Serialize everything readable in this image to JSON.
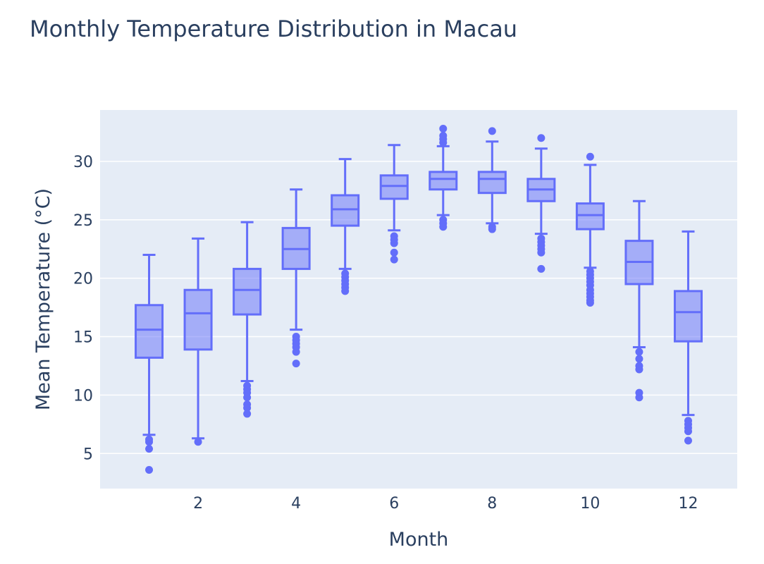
{
  "chart_data": {
    "type": "box",
    "title": "Monthly Temperature Distribution in Macau",
    "xlabel": "Month",
    "ylabel": "Mean Temperature (°C)",
    "xlim": [
      0,
      13
    ],
    "ylim": [
      2,
      34.4
    ],
    "x_ticks": [
      2,
      4,
      6,
      8,
      10,
      12
    ],
    "y_ticks": [
      5,
      10,
      15,
      20,
      25,
      30
    ],
    "grid": true,
    "colors": {
      "box": "#636efa",
      "box_fill": "rgba(99,110,250,0.5)",
      "plot_bg": "#e5ecf6",
      "grid": "#ffffff"
    },
    "boxes": [
      {
        "month": 1,
        "lower_whisker": 6.6,
        "q1": 13.2,
        "median": 15.6,
        "q3": 17.7,
        "upper_whisker": 22.0,
        "outliers": [
          6.2,
          6.0,
          5.4,
          3.6
        ]
      },
      {
        "month": 2,
        "lower_whisker": 6.3,
        "q1": 13.9,
        "median": 17.0,
        "q3": 19.0,
        "upper_whisker": 23.4,
        "outliers": [
          6.0
        ]
      },
      {
        "month": 3,
        "lower_whisker": 11.2,
        "q1": 16.9,
        "median": 19.0,
        "q3": 20.8,
        "upper_whisker": 24.8,
        "outliers": [
          10.8,
          10.5,
          10.2,
          9.8,
          9.2,
          8.9,
          8.4
        ]
      },
      {
        "month": 4,
        "lower_whisker": 15.6,
        "q1": 20.8,
        "median": 22.5,
        "q3": 24.3,
        "upper_whisker": 27.6,
        "outliers": [
          15.0,
          14.7,
          14.4,
          14.1,
          13.7,
          12.7
        ]
      },
      {
        "month": 5,
        "lower_whisker": 20.8,
        "q1": 24.5,
        "median": 25.9,
        "q3": 27.1,
        "upper_whisker": 30.2,
        "outliers": [
          20.4,
          20.1,
          19.8,
          19.5,
          19.2,
          18.9
        ]
      },
      {
        "month": 6,
        "lower_whisker": 24.1,
        "q1": 26.8,
        "median": 27.9,
        "q3": 28.8,
        "upper_whisker": 31.4,
        "outliers": [
          23.6,
          23.3,
          23.0,
          22.2,
          21.6
        ]
      },
      {
        "month": 7,
        "lower_whisker": 25.4,
        "q1": 27.6,
        "median": 28.5,
        "q3": 29.1,
        "upper_whisker": 31.3,
        "outliers": [
          31.6,
          31.9,
          32.2,
          32.8,
          25.0,
          24.7,
          24.4
        ]
      },
      {
        "month": 8,
        "lower_whisker": 24.7,
        "q1": 27.3,
        "median": 28.5,
        "q3": 29.1,
        "upper_whisker": 31.7,
        "outliers": [
          32.6,
          24.4,
          24.2
        ]
      },
      {
        "month": 9,
        "lower_whisker": 23.8,
        "q1": 26.6,
        "median": 27.6,
        "q3": 28.5,
        "upper_whisker": 31.1,
        "outliers": [
          32.0,
          23.4,
          23.1,
          22.8,
          22.5,
          22.2,
          20.8
        ]
      },
      {
        "month": 10,
        "lower_whisker": 20.9,
        "q1": 24.2,
        "median": 25.4,
        "q3": 26.4,
        "upper_whisker": 29.7,
        "outliers": [
          30.4,
          20.6,
          20.3,
          20.0,
          19.7,
          19.4,
          19.0,
          18.7,
          18.4,
          18.1,
          17.9
        ]
      },
      {
        "month": 11,
        "lower_whisker": 14.1,
        "q1": 19.5,
        "median": 21.4,
        "q3": 23.2,
        "upper_whisker": 26.6,
        "outliers": [
          13.7,
          13.1,
          12.5,
          12.2,
          10.2,
          9.8
        ]
      },
      {
        "month": 12,
        "lower_whisker": 8.3,
        "q1": 14.6,
        "median": 17.1,
        "q3": 18.9,
        "upper_whisker": 24.0,
        "outliers": [
          7.8,
          7.5,
          7.2,
          6.9,
          6.1
        ]
      }
    ]
  }
}
